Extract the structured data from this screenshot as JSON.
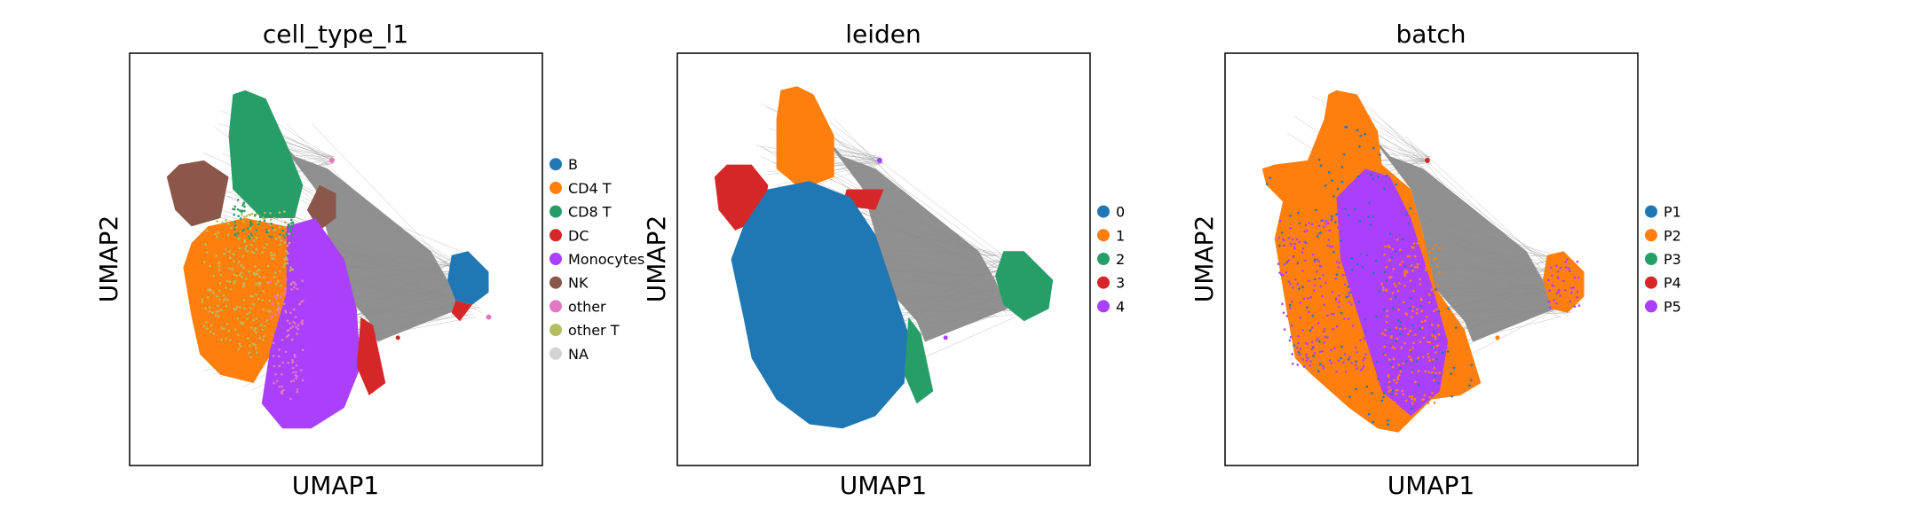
{
  "chart_data": [
    {
      "type": "scatter",
      "title": "cell_type_l1",
      "xlabel": "UMAP1",
      "ylabel": "UMAP2",
      "ticks": "none",
      "grid": false,
      "legend_placement": "right",
      "background_edges": "#808080",
      "series": [
        {
          "name": "B",
          "color": "#1f77b4"
        },
        {
          "name": "CD4 T",
          "color": "#ff7f0e"
        },
        {
          "name": "CD8 T",
          "color": "#279e68"
        },
        {
          "name": "DC",
          "color": "#d62728"
        },
        {
          "name": "Monocytes",
          "color": "#aa40fc"
        },
        {
          "name": "NK",
          "color": "#8c564b"
        },
        {
          "name": "other",
          "color": "#e377c2"
        },
        {
          "name": "other T",
          "color": "#b5bd61"
        },
        {
          "name": "NA",
          "color": "#d3d3d3"
        }
      ]
    },
    {
      "type": "scatter",
      "title": "leiden",
      "xlabel": "UMAP1",
      "ylabel": "UMAP2",
      "ticks": "none",
      "grid": false,
      "legend_placement": "right",
      "background_edges": "#808080",
      "series": [
        {
          "name": "0",
          "color": "#1f77b4"
        },
        {
          "name": "1",
          "color": "#ff7f0e"
        },
        {
          "name": "2",
          "color": "#279e68"
        },
        {
          "name": "3",
          "color": "#d62728"
        },
        {
          "name": "4",
          "color": "#aa40fc"
        }
      ]
    },
    {
      "type": "scatter",
      "title": "batch",
      "xlabel": "UMAP1",
      "ylabel": "UMAP2",
      "ticks": "none",
      "grid": false,
      "legend_placement": "right",
      "background_edges": "#808080",
      "series": [
        {
          "name": "P1",
          "color": "#1f77b4"
        },
        {
          "name": "P2",
          "color": "#ff7f0e"
        },
        {
          "name": "P3",
          "color": "#279e68"
        },
        {
          "name": "P4",
          "color": "#d62728"
        },
        {
          "name": "P5",
          "color": "#aa40fc"
        }
      ]
    }
  ]
}
